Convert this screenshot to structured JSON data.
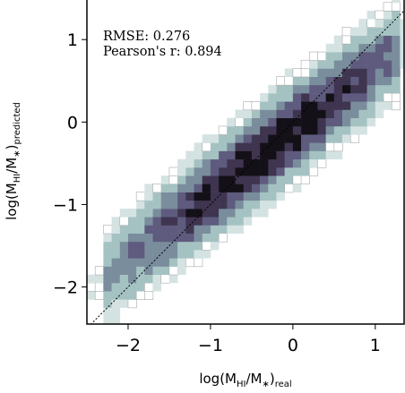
{
  "chart_data": {
    "type": "heatmap",
    "xlabel": {
      "prefix": "log(M",
      "sub1": "HI",
      "middle": "/M",
      "star": "∗",
      "close": ")",
      "sub2": "real"
    },
    "ylabel": {
      "prefix": "log(M",
      "sub1": "HI",
      "middle": "/M",
      "star": "∗",
      "close": ")",
      "sub2": "predicted"
    },
    "xlim": [
      -2.5,
      1.35
    ],
    "ylim": [
      -2.45,
      1.48
    ],
    "xticks": [
      -2,
      -1,
      0,
      1
    ],
    "yticks": [
      -2,
      -1,
      0,
      1
    ],
    "xtick_labels": [
      "−2",
      "−1",
      "0",
      "1"
    ],
    "ytick_labels": [
      "−2",
      "−1",
      "0",
      "1"
    ],
    "reference_line": {
      "type": "one-to-one",
      "style": "dotted",
      "color": "#000000"
    },
    "annotations": [
      "RMSE:  0.276",
      "Pearson's r:  0.894"
    ],
    "metrics": {
      "rmse": 0.276,
      "pearson_r": 0.894
    },
    "density": {
      "bin_width": 0.1,
      "ridge_slope": 0.8,
      "ridge_intercept": -0.1,
      "peak_at": [
        -0.3,
        -0.35
      ],
      "scatter_width": 0.28,
      "x_extent": [
        -2.2,
        1.2
      ]
    },
    "colormap": [
      "#ffffff",
      "#d4e3e2",
      "#a5c2c2",
      "#7a8d9c",
      "#5e5b7e",
      "#3f3550",
      "#141018"
    ],
    "grid": false,
    "legend": "none"
  }
}
